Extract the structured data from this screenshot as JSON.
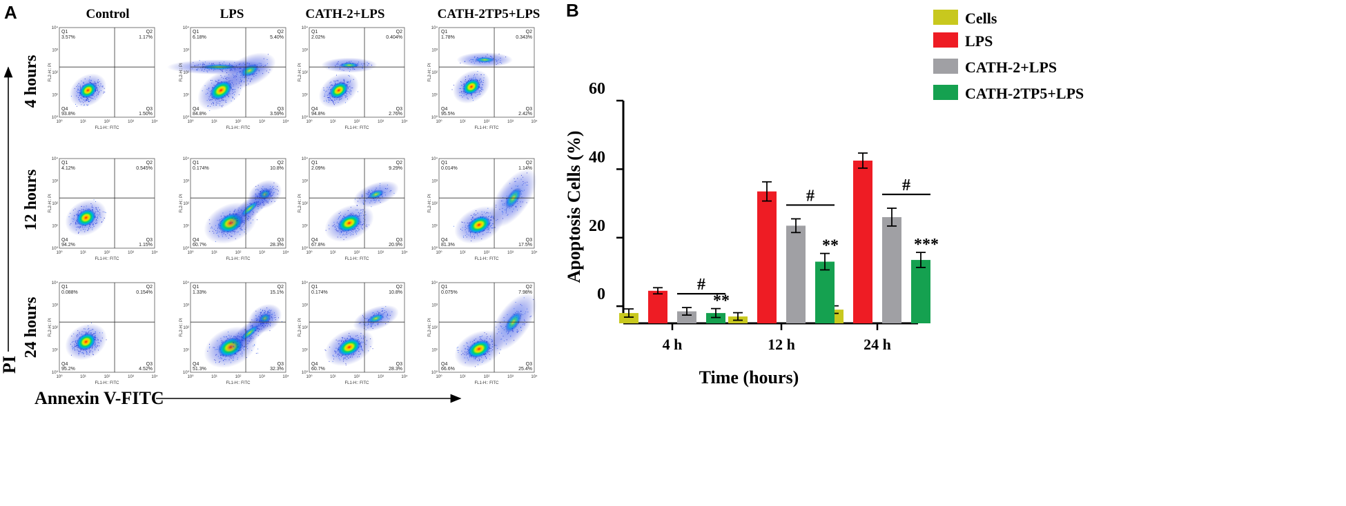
{
  "panelA": {
    "letter": "A",
    "columns": [
      "Control",
      "LPS",
      "CATH-2+LPS",
      "CATH-2TP5+LPS"
    ],
    "rows": [
      "4 hours",
      "12 hours",
      "24 hours"
    ],
    "y_axis_label": "PI",
    "x_axis_label": "Annexin V-FITC",
    "plot_x_label": "FL1-H:: FITC",
    "plot_y_label": "FL2-H:: PI",
    "ticks": [
      "10⁰",
      "10¹",
      "10²",
      "10³",
      "10⁴"
    ],
    "quadrant_names": [
      "Q1",
      "Q2",
      "Q3",
      "Q4"
    ],
    "plots": [
      [
        {
          "q1": "3.57%",
          "q2": "1.17%",
          "q3": "1.50%",
          "q4": "93.8%"
        },
        {
          "q1": "6.18%",
          "q2": "5.40%",
          "q3": "3.59%",
          "q4": "84.8%"
        },
        {
          "q1": "2.02%",
          "q2": "0.404%",
          "q3": "2.76%",
          "q4": "94.8%"
        },
        {
          "q1": "1.78%",
          "q2": "0.343%",
          "q3": "2.42%",
          "q4": "95.5%"
        }
      ],
      [
        {
          "q1": "4.12%",
          "q2": "0.545%",
          "q3": "1.15%",
          "q4": "94.2%"
        },
        {
          "q1": "0.174%",
          "q2": "10.8%",
          "q3": "28.3%",
          "q4": "60.7%"
        },
        {
          "q1": "2.09%",
          "q2": "9.29%",
          "q3": "20.9%",
          "q4": "67.8%"
        },
        {
          "q1": "0.014%",
          "q2": "1.14%",
          "q3": "17.5%",
          "q4": "81.3%"
        }
      ],
      [
        {
          "q1": "0.088%",
          "q2": "0.154%",
          "q3": "4.52%",
          "q4": "95.2%"
        },
        {
          "q1": "1.33%",
          "q2": "15.1%",
          "q3": "32.3%",
          "q4": "51.3%"
        },
        {
          "q1": "0.174%",
          "q2": "10.8%",
          "q3": "28.3%",
          "q4": "60.7%"
        },
        {
          "q1": "0.075%",
          "q2": "7.98%",
          "q3": "25.4%",
          "q4": "66.6%"
        }
      ]
    ],
    "populations": [
      [
        "control",
        "lps",
        "cath2",
        "cath2tp5"
      ],
      [
        "control",
        "lps",
        "cath2",
        "cath2tp5"
      ],
      [
        "control",
        "lps",
        "cath2",
        "cath2tp5"
      ]
    ]
  },
  "chart_data": {
    "type": "bar",
    "panel_letter": "B",
    "title": "",
    "categories": [
      "4 h",
      "12 h",
      "24 h"
    ],
    "xlabel": "Time (hours)",
    "ylabel": "Apoptosis Cells (%)",
    "ylim": [
      -5,
      60
    ],
    "ytick_values": [
      0,
      20,
      40,
      60
    ],
    "ytick_labels": [
      "0",
      "20",
      "40",
      "60"
    ],
    "grid": false,
    "legend_position": "top-right",
    "series": [
      {
        "name": "Cells",
        "color": "#c8c81e",
        "values": [
          -2,
          -3,
          -1
        ],
        "errors": [
          1.2,
          1.1,
          1.1
        ]
      },
      {
        "name": "LPS",
        "color": "#ee1c24",
        "values": [
          4.5,
          33.5,
          42.5
        ],
        "errors": [
          0.9,
          2.8,
          2.2
        ]
      },
      {
        "name": "CATH-2+LPS",
        "color": "#a0a0a4",
        "values": [
          -1.5,
          23.5,
          26
        ],
        "errors": [
          1.1,
          2.0,
          2.6
        ]
      },
      {
        "name": "CATH-2TP5+LPS",
        "color": "#15a150",
        "values": [
          -2,
          13,
          13.5
        ],
        "errors": [
          1.3,
          2.4,
          2.2
        ]
      }
    ],
    "annotations": [
      {
        "category": "4 h",
        "hash": "#",
        "stars": "**"
      },
      {
        "category": "12 h",
        "hash": "#",
        "stars": "**"
      },
      {
        "category": "24 h",
        "hash": "#",
        "stars": "***"
      }
    ]
  }
}
